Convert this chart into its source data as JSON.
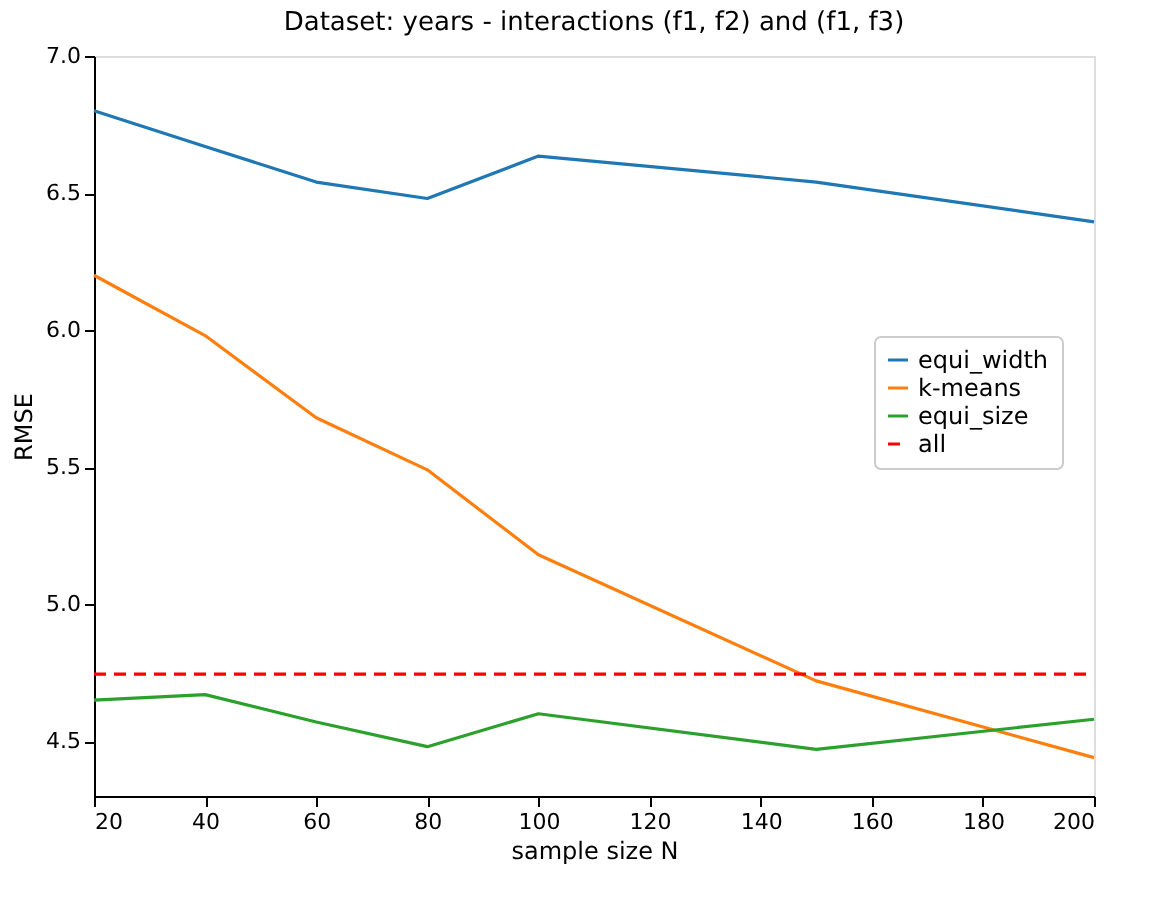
{
  "chart_data": {
    "type": "line",
    "title": "Dataset: years - interactions (f1, f2) and (f1, f3)",
    "xlabel": "sample size N",
    "ylabel": "RMSE",
    "x": [
      20,
      40,
      60,
      80,
      100,
      150,
      200
    ],
    "series": [
      {
        "name": "equi_width",
        "color": "#1f77b4",
        "values": [
          6.8,
          6.67,
          6.54,
          6.48,
          6.635,
          6.54,
          6.395
        ]
      },
      {
        "name": "k-means",
        "color": "#ff7f0e",
        "values": [
          6.2,
          5.98,
          5.68,
          5.49,
          5.18,
          4.72,
          4.44
        ]
      },
      {
        "name": "equi_size",
        "color": "#2ca02c",
        "values": [
          4.65,
          4.67,
          4.57,
          4.48,
          4.6,
          4.47,
          4.58
        ]
      }
    ],
    "ref_lines": [
      {
        "axis": "y",
        "value": 4.745,
        "label": "all",
        "color": "#ff0000",
        "line_style": "dashed"
      }
    ],
    "xlim": [
      20,
      200
    ],
    "xticks": [
      20,
      40,
      60,
      80,
      100,
      120,
      140,
      160,
      180,
      200
    ],
    "ylim": [
      4.3,
      7.0
    ],
    "yticks": [
      4.5,
      {
        "value": 5,
        "label": "5.0"
      },
      5.5,
      {
        "value": 6,
        "label": "6.0"
      },
      6.5,
      {
        "value": 7,
        "label": "7.0"
      }
    ],
    "grid": false,
    "legend": "right",
    "marker": "none",
    "line_style": "solid"
  }
}
